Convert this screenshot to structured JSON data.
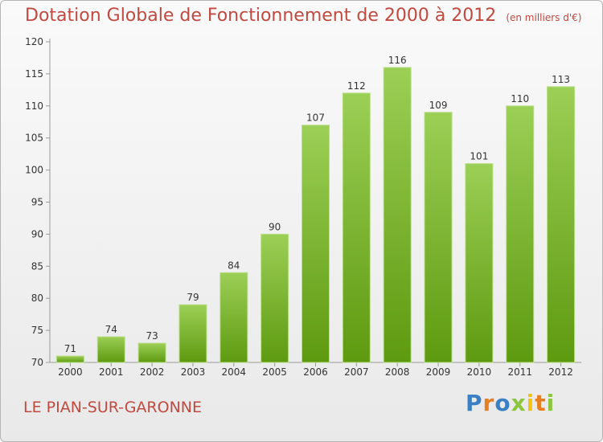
{
  "title": "Dotation Globale de Fonctionnement de 2000 à 2012",
  "subtitle": "(en milliers d'€)",
  "commune": "LE PIAN-SUR-GARONNE",
  "logo": "Proxiti",
  "colors": {
    "bar_light": "#9ccf56",
    "bar_dark": "#5e9a10",
    "title": "#c04a3f"
  },
  "chart_data": {
    "type": "bar",
    "categories": [
      "2000",
      "2001",
      "2002",
      "2003",
      "2004",
      "2005",
      "2006",
      "2007",
      "2008",
      "2009",
      "2010",
      "2011",
      "2012"
    ],
    "values": [
      71,
      74,
      73,
      79,
      84,
      90,
      107,
      112,
      116,
      109,
      101,
      110,
      113
    ],
    "ylim": [
      70,
      120
    ],
    "yticks": [
      70,
      75,
      80,
      85,
      90,
      95,
      100,
      105,
      110,
      115,
      120
    ],
    "grid": false,
    "title": "Dotation Globale de Fonctionnement de 2000 à 2012",
    "xlabel": "",
    "ylabel": ""
  }
}
